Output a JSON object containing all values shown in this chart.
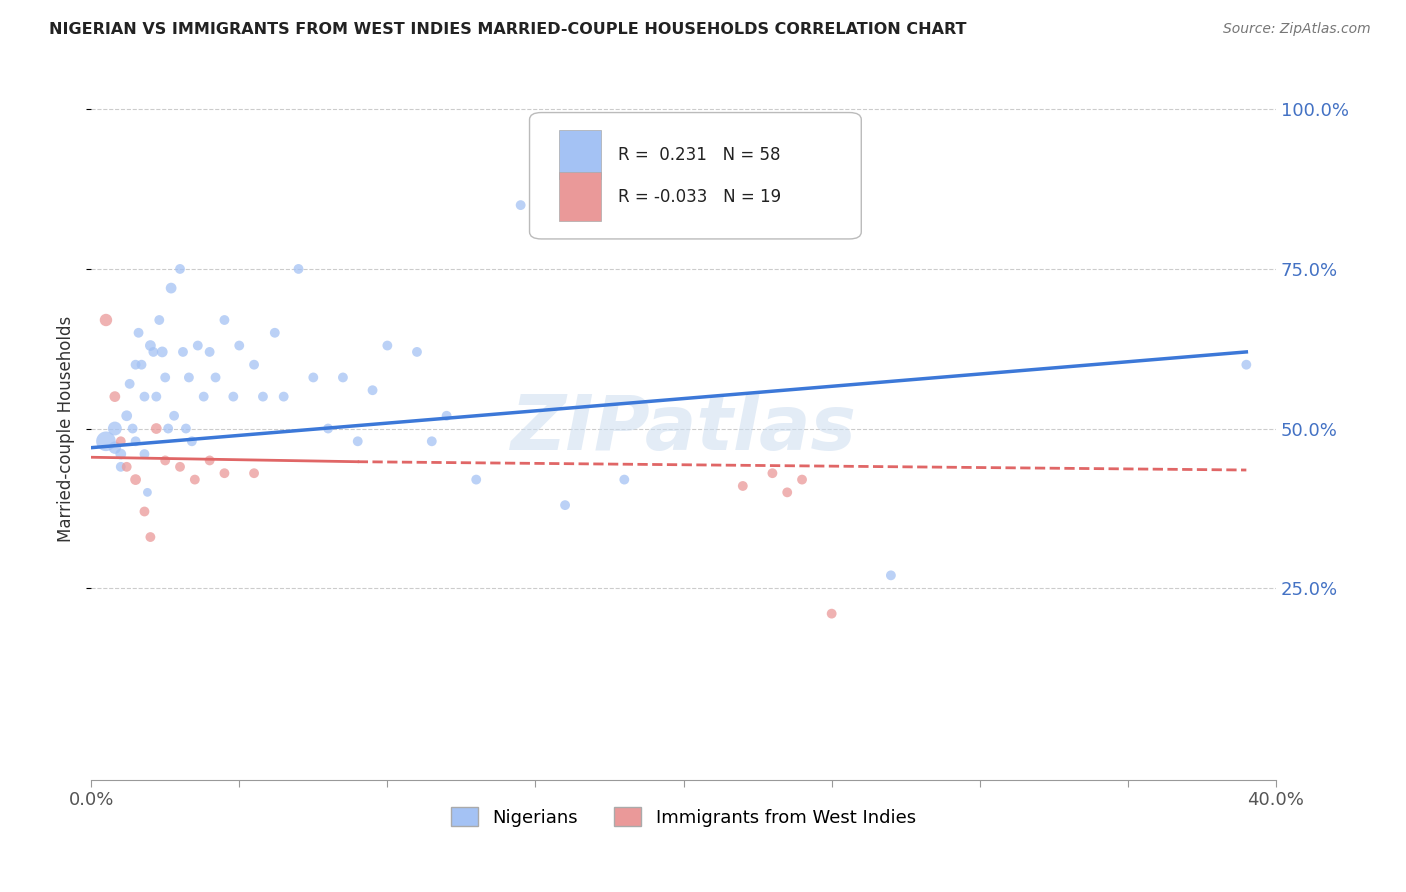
{
  "title": "NIGERIAN VS IMMIGRANTS FROM WEST INDIES MARRIED-COUPLE HOUSEHOLDS CORRELATION CHART",
  "source": "Source: ZipAtlas.com",
  "ylabel": "Married-couple Households",
  "xlim": [
    0.0,
    0.4
  ],
  "ylim": [
    -0.05,
    1.05
  ],
  "legend_blue_r": "0.231",
  "legend_blue_n": "58",
  "legend_pink_r": "-0.033",
  "legend_pink_n": "19",
  "legend_label_blue": "Nigerians",
  "legend_label_pink": "Immigrants from West Indies",
  "watermark": "ZIPatlas",
  "blue_color": "#a4c2f4",
  "pink_color": "#ea9999",
  "line_blue_color": "#3c78d8",
  "line_pink_color": "#e06666",
  "blue_x": [
    0.005,
    0.008,
    0.008,
    0.01,
    0.01,
    0.012,
    0.013,
    0.014,
    0.015,
    0.015,
    0.016,
    0.017,
    0.018,
    0.018,
    0.019,
    0.02,
    0.021,
    0.022,
    0.023,
    0.024,
    0.025,
    0.026,
    0.027,
    0.028,
    0.03,
    0.031,
    0.032,
    0.033,
    0.034,
    0.036,
    0.038,
    0.04,
    0.042,
    0.045,
    0.048,
    0.05,
    0.055,
    0.058,
    0.062,
    0.065,
    0.07,
    0.075,
    0.08,
    0.085,
    0.09,
    0.095,
    0.1,
    0.11,
    0.115,
    0.12,
    0.13,
    0.145,
    0.16,
    0.18,
    0.2,
    0.22,
    0.27,
    0.39
  ],
  "blue_y": [
    0.48,
    0.5,
    0.47,
    0.46,
    0.44,
    0.52,
    0.57,
    0.5,
    0.48,
    0.6,
    0.65,
    0.6,
    0.55,
    0.46,
    0.4,
    0.63,
    0.62,
    0.55,
    0.67,
    0.62,
    0.58,
    0.5,
    0.72,
    0.52,
    0.75,
    0.62,
    0.5,
    0.58,
    0.48,
    0.63,
    0.55,
    0.62,
    0.58,
    0.67,
    0.55,
    0.63,
    0.6,
    0.55,
    0.65,
    0.55,
    0.75,
    0.58,
    0.5,
    0.58,
    0.48,
    0.56,
    0.63,
    0.62,
    0.48,
    0.52,
    0.42,
    0.85,
    0.38,
    0.42,
    0.9,
    0.84,
    0.27,
    0.6
  ],
  "blue_size": [
    200,
    100,
    80,
    60,
    50,
    60,
    50,
    50,
    50,
    50,
    50,
    50,
    50,
    50,
    40,
    60,
    50,
    50,
    50,
    60,
    50,
    50,
    60,
    50,
    50,
    50,
    50,
    50,
    50,
    50,
    50,
    50,
    50,
    50,
    50,
    50,
    50,
    50,
    50,
    50,
    50,
    50,
    50,
    50,
    50,
    50,
    50,
    50,
    50,
    50,
    50,
    50,
    50,
    50,
    50,
    50,
    50,
    50
  ],
  "pink_x": [
    0.005,
    0.008,
    0.01,
    0.012,
    0.015,
    0.018,
    0.02,
    0.022,
    0.025,
    0.03,
    0.035,
    0.04,
    0.045,
    0.055,
    0.22,
    0.23,
    0.235,
    0.24,
    0.25
  ],
  "pink_y": [
    0.67,
    0.55,
    0.48,
    0.44,
    0.42,
    0.37,
    0.33,
    0.5,
    0.45,
    0.44,
    0.42,
    0.45,
    0.43,
    0.43,
    0.41,
    0.43,
    0.4,
    0.42,
    0.21
  ],
  "pink_size": [
    80,
    60,
    50,
    50,
    60,
    50,
    50,
    60,
    50,
    50,
    50,
    50,
    50,
    50,
    50,
    50,
    50,
    50,
    50
  ],
  "ytick_vals": [
    0.25,
    0.5,
    0.75,
    1.0
  ],
  "ytick_labels": [
    "25.0%",
    "50.0%",
    "75.0%",
    "100.0%"
  ],
  "xtick_vals": [
    0.0,
    0.05,
    0.1,
    0.15,
    0.2,
    0.25,
    0.3,
    0.35,
    0.4
  ],
  "xtick_labels": [
    "0.0%",
    "",
    "",
    "",
    "",
    "",
    "",
    "",
    "40.0%"
  ]
}
